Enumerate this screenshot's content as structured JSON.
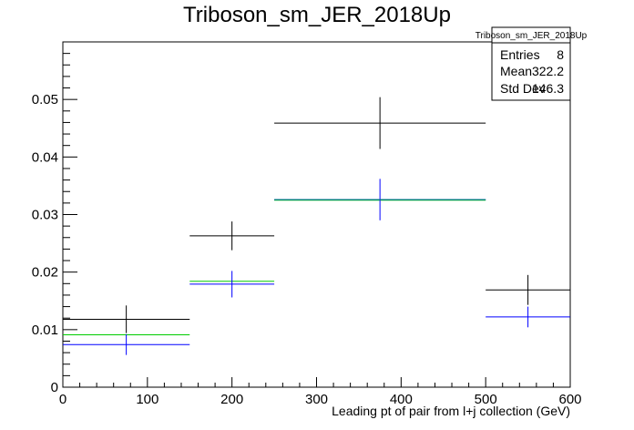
{
  "chart_data": {
    "type": "scatter",
    "title": "Triboson_sm_JER_2018Up",
    "xlabel": "Leading pt of pair from l+j collection (GeV)",
    "ylabel": "",
    "xlim": [
      0,
      600
    ],
    "ylim": [
      0,
      0.06
    ],
    "x_ticks": [
      0,
      100,
      200,
      300,
      400,
      500,
      600
    ],
    "y_ticks": [
      0,
      0.01,
      0.02,
      0.03,
      0.04,
      0.05
    ],
    "x_tick_labels": [
      "0",
      "100",
      "200",
      "300",
      "400",
      "500",
      "600"
    ],
    "y_tick_labels": [
      "0",
      "0.01",
      "0.02",
      "0.03",
      "0.04",
      "0.05"
    ],
    "grid": false,
    "bins": [
      [
        0,
        150
      ],
      [
        150,
        250
      ],
      [
        250,
        500
      ],
      [
        500,
        600
      ]
    ],
    "series": [
      {
        "color": "#000000",
        "values": [
          0.0118,
          0.0263,
          0.0459,
          0.0169
        ],
        "errors": [
          0.0024,
          0.0025,
          0.0045,
          0.0026
        ]
      },
      {
        "color": "#00cc00",
        "values": [
          0.0091,
          0.0184,
          0.0325,
          null
        ],
        "errors": [
          0,
          0,
          0,
          0
        ]
      },
      {
        "color": "#0000ff",
        "values": [
          0.0074,
          0.0179,
          0.0326,
          0.0122
        ],
        "errors": [
          0.0018,
          0.0023,
          0.0036,
          0.0018
        ]
      },
      {
        "color": "#008080",
        "values": [
          null,
          null,
          0.0326,
          null
        ],
        "errors": [
          0,
          0,
          0,
          0
        ]
      }
    ],
    "stats_box": {
      "name": "Triboson_sm_JER_2018Up",
      "rows": [
        {
          "label": "Entries",
          "value": "8"
        },
        {
          "label": "Mean",
          "value": "322.2"
        },
        {
          "label": "Std Dev",
          "value": "146.3"
        }
      ]
    }
  }
}
